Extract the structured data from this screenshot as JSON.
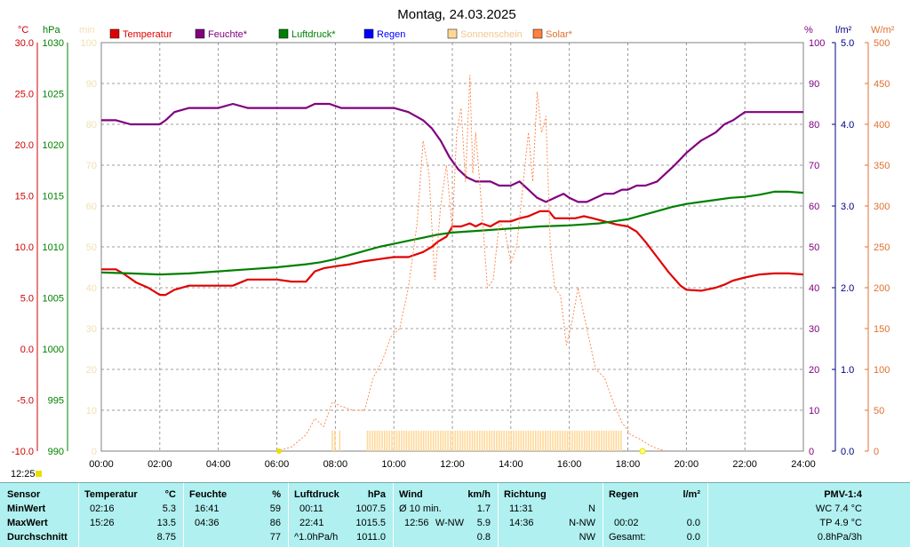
{
  "title": "Montag, 24.03.2025",
  "legend": [
    {
      "label": "Temperatur",
      "color": "#e00000"
    },
    {
      "label": "Feuchte*",
      "color": "#800080"
    },
    {
      "label": "Luftdruck*",
      "color": "#008000"
    },
    {
      "label": "Regen",
      "color": "#0000ff"
    },
    {
      "label": "Sonnenschein",
      "color": "#ffd898"
    },
    {
      "label": "Solar*",
      "color": "#ff8040"
    }
  ],
  "axes": {
    "temp": {
      "unit": "°C",
      "ticks": [
        "30.0",
        "25.0",
        "20.0",
        "15.0",
        "10.0",
        "5.0",
        "0.0",
        "-5.0",
        "-10.0"
      ],
      "color": "#d00000"
    },
    "hpa": {
      "unit": "hPa",
      "ticks": [
        "1030",
        "1025",
        "1020",
        "1015",
        "1010",
        "1005",
        "1000",
        "995",
        "990"
      ],
      "color": "#008000"
    },
    "min": {
      "unit": "min",
      "ticks": [
        "100",
        "90",
        "80",
        "70",
        "60",
        "50",
        "40",
        "30",
        "20",
        "10",
        "0"
      ],
      "color": "#f0e0b0"
    },
    "hum": {
      "unit": "%",
      "ticks": [
        "100",
        "90",
        "80",
        "70",
        "60",
        "50",
        "40",
        "30",
        "20",
        "10",
        "0"
      ],
      "color": "#800080"
    },
    "rain": {
      "unit": "l/m²",
      "ticks": [
        "5.0",
        "4.0",
        "3.0",
        "2.0",
        "1.0",
        "0.0"
      ],
      "color": "#000080"
    },
    "solar": {
      "unit": "W/m²",
      "ticks": [
        "500",
        "450",
        "400",
        "350",
        "300",
        "250",
        "200",
        "150",
        "100",
        "50",
        "0"
      ],
      "color": "#e07030"
    },
    "x_ticks": [
      "00:00",
      "02:00",
      "04:00",
      "06:00",
      "08:00",
      "10:00",
      "12:00",
      "14:00",
      "16:00",
      "18:00",
      "20:00",
      "22:00",
      "24:00"
    ]
  },
  "sunrise_label": "12:25",
  "chart_data": {
    "type": "line",
    "title": "Montag, 24.03.2025",
    "x_unit": "hours",
    "xlim": [
      0,
      24
    ],
    "series": [
      {
        "name": "Temperatur",
        "axis": "°C",
        "ylim": [
          -10,
          30
        ],
        "x": [
          0,
          0.5,
          0.8,
          1.2,
          1.6,
          2.0,
          2.2,
          2.5,
          3.0,
          3.5,
          4.0,
          4.5,
          5.0,
          5.5,
          6.0,
          6.5,
          7.0,
          7.3,
          7.6,
          8.0,
          8.5,
          9.0,
          9.5,
          10.0,
          10.5,
          11.0,
          11.3,
          11.5,
          11.8,
          12.0,
          12.3,
          12.6,
          12.8,
          13.0,
          13.3,
          13.6,
          14.0,
          14.3,
          14.6,
          15.0,
          15.3,
          15.5,
          15.8,
          16.2,
          16.5,
          16.8,
          17.2,
          17.6,
          18.0,
          18.3,
          18.6,
          19.0,
          19.4,
          19.8,
          20.0,
          20.5,
          21.0,
          21.3,
          21.6,
          22.0,
          22.5,
          23.0,
          23.5,
          24.0
        ],
        "values": [
          7.8,
          7.8,
          7.3,
          6.5,
          6.0,
          5.3,
          5.3,
          5.8,
          6.2,
          6.2,
          6.2,
          6.2,
          6.8,
          6.8,
          6.8,
          6.6,
          6.6,
          7.6,
          7.9,
          8.1,
          8.3,
          8.6,
          8.8,
          9.0,
          9.0,
          9.5,
          10.0,
          10.5,
          11.0,
          12.0,
          12.0,
          12.3,
          12.0,
          12.3,
          12.0,
          12.5,
          12.5,
          12.8,
          13.0,
          13.5,
          13.5,
          12.8,
          12.8,
          12.8,
          13.0,
          12.8,
          12.5,
          12.2,
          12.0,
          11.5,
          10.5,
          9.0,
          7.5,
          6.2,
          5.8,
          5.7,
          6.0,
          6.3,
          6.7,
          7.0,
          7.3,
          7.4,
          7.4,
          7.3
        ]
      },
      {
        "name": "Feuchte*",
        "axis": "%",
        "ylim": [
          0,
          100
        ],
        "x": [
          0,
          0.5,
          1.0,
          1.5,
          2.0,
          2.2,
          2.5,
          3.0,
          3.5,
          4.0,
          4.5,
          5.0,
          5.5,
          6.0,
          6.5,
          7.0,
          7.3,
          7.8,
          8.2,
          8.5,
          9.0,
          9.5,
          10.0,
          10.5,
          11.0,
          11.3,
          11.6,
          11.9,
          12.2,
          12.5,
          12.8,
          13.0,
          13.3,
          13.6,
          14.0,
          14.3,
          14.6,
          14.9,
          15.2,
          15.5,
          15.8,
          16.0,
          16.3,
          16.6,
          16.9,
          17.2,
          17.5,
          17.8,
          18.0,
          18.3,
          18.6,
          19.0,
          19.3,
          19.6,
          20.0,
          20.5,
          21.0,
          21.3,
          21.6,
          22.0,
          22.5,
          23.0,
          23.5,
          24.0
        ],
        "values": [
          81,
          81,
          80,
          80,
          80,
          81,
          83,
          84,
          84,
          84,
          85,
          84,
          84,
          84,
          84,
          84,
          85,
          85,
          84,
          84,
          84,
          84,
          84,
          83,
          81,
          79,
          76,
          72,
          69,
          67,
          66,
          66,
          66,
          65,
          65,
          66,
          64,
          62,
          61,
          62,
          63,
          62,
          61,
          61,
          62,
          63,
          63,
          64,
          64,
          65,
          65,
          66,
          68,
          70,
          73,
          76,
          78,
          80,
          81,
          83,
          83,
          83,
          83,
          83
        ]
      },
      {
        "name": "Luftdruck*",
        "axis": "hPa",
        "ylim": [
          990,
          1030
        ],
        "x": [
          0,
          1.0,
          2.0,
          3.0,
          4.0,
          5.0,
          6.0,
          7.0,
          7.5,
          8.0,
          8.5,
          9.0,
          9.5,
          10.0,
          10.5,
          11.0,
          11.5,
          12.0,
          13.0,
          14.0,
          15.0,
          16.0,
          17.0,
          17.5,
          18.0,
          18.5,
          19.0,
          19.5,
          20.0,
          20.5,
          21.0,
          21.5,
          22.0,
          22.5,
          23.0,
          23.5,
          24.0
        ],
        "values": [
          1007.5,
          1007.4,
          1007.3,
          1007.4,
          1007.6,
          1007.8,
          1008.0,
          1008.3,
          1008.5,
          1008.8,
          1009.2,
          1009.6,
          1010.0,
          1010.3,
          1010.6,
          1010.9,
          1011.2,
          1011.4,
          1011.6,
          1011.8,
          1012.0,
          1012.1,
          1012.3,
          1012.5,
          1012.7,
          1013.1,
          1013.5,
          1013.9,
          1014.2,
          1014.4,
          1014.6,
          1014.8,
          1014.9,
          1015.1,
          1015.4,
          1015.4,
          1015.3
        ]
      },
      {
        "name": "Solar*",
        "axis": "W/m²",
        "ylim": [
          0,
          500
        ],
        "x": [
          6.0,
          6.5,
          7.0,
          7.3,
          7.6,
          7.9,
          8.2,
          8.6,
          9.0,
          9.3,
          9.6,
          9.9,
          10.2,
          10.5,
          10.8,
          11.0,
          11.2,
          11.4,
          11.6,
          11.8,
          12.0,
          12.15,
          12.3,
          12.45,
          12.6,
          12.7,
          12.8,
          13.0,
          13.2,
          13.4,
          13.6,
          13.8,
          14.0,
          14.2,
          14.4,
          14.6,
          14.75,
          14.9,
          15.05,
          15.2,
          15.35,
          15.5,
          15.7,
          15.9,
          16.1,
          16.3,
          16.6,
          16.9,
          17.2,
          17.5,
          17.8,
          18.1,
          18.4,
          18.7,
          19.0,
          19.3
        ],
        "values": [
          0,
          5,
          20,
          40,
          30,
          60,
          55,
          50,
          50,
          90,
          110,
          140,
          150,
          200,
          280,
          380,
          340,
          210,
          300,
          350,
          270,
          390,
          420,
          330,
          460,
          340,
          390,
          300,
          200,
          210,
          280,
          270,
          230,
          250,
          320,
          390,
          330,
          440,
          390,
          410,
          250,
          200,
          190,
          130,
          160,
          200,
          150,
          100,
          90,
          60,
          35,
          20,
          15,
          8,
          3,
          0
        ]
      }
    ],
    "sunshine_bars": {
      "name": "Sonnenschein",
      "axis": "min",
      "ranges": [
        [
          7.9,
          8.0
        ],
        [
          8.15,
          8.2
        ],
        [
          9.1,
          17.8
        ]
      ],
      "value": 5
    },
    "rain_values": [],
    "sunrise": 6.0,
    "sunset": 18.45
  },
  "stats": {
    "sensor": {
      "header": "Sensor",
      "rows": [
        "MinWert",
        "MaxWert",
        "Durchschnitt"
      ]
    },
    "temperatur": {
      "header": "Temperatur",
      "unit": "°C",
      "time": [
        "02:16",
        "15:26",
        ""
      ],
      "value": [
        "5.3",
        "13.5",
        "8.75"
      ]
    },
    "feuchte": {
      "header": "Feuchte",
      "unit": "%",
      "time": [
        "16:41",
        "04:36",
        ""
      ],
      "value": [
        "59",
        "86",
        "77"
      ]
    },
    "luftdruck": {
      "header": "Luftdruck",
      "unit": "hPa",
      "time": [
        "00:11",
        "22:41",
        "^1.0hPa/h"
      ],
      "value": [
        "1007.5",
        "1015.5",
        "1011.0"
      ]
    },
    "wind": {
      "header": "Wind",
      "unit": "km/h",
      "left": [
        "Ø 10 min.",
        "12:56",
        ""
      ],
      "mid": [
        "",
        "W-NW",
        ""
      ],
      "value": [
        "1.7",
        "5.9",
        "0.8"
      ]
    },
    "richtung": {
      "header": "Richtung",
      "time": [
        "11:31",
        "14:36",
        ""
      ],
      "value": [
        "N",
        "N-NW",
        "NW"
      ]
    },
    "regen": {
      "header": "Regen",
      "unit": "l/m²",
      "time": [
        "",
        "00:02",
        "Gesamt:"
      ],
      "value": [
        "",
        "0.0",
        "0.0"
      ]
    },
    "pmv": {
      "header": "PMV-1:4",
      "lines": [
        "WC 7.4 °C",
        "TP 4.9 °C",
        "0.8hPa/3h"
      ]
    }
  }
}
